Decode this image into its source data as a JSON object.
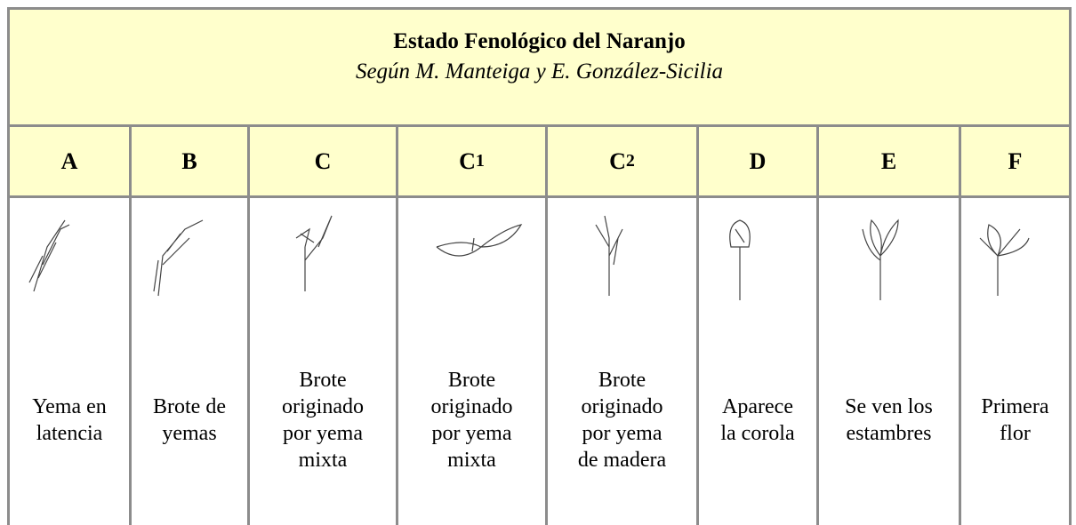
{
  "header": {
    "title": "Estado Fenológico del Naranjo",
    "subtitle": "Según M. Manteiga y E. González-Sicilia"
  },
  "columns": [
    {
      "letter": "A",
      "description": [
        "Yema en",
        "latencia"
      ]
    },
    {
      "letter": "B",
      "description": [
        "Brote de",
        "yemas"
      ]
    },
    {
      "letter": "C",
      "description": [
        "Brote",
        "originado",
        "por yema",
        "mixta"
      ]
    },
    {
      "letter": "C",
      "subscript": "1",
      "description": [
        "Brote",
        "originado",
        "por yema",
        "mixta"
      ]
    },
    {
      "letter": "C",
      "subscript": "2",
      "description": [
        "Brote",
        "originado",
        "por yema",
        "de madera"
      ]
    },
    {
      "letter": "D",
      "description": [
        "Aparece",
        "la corola"
      ]
    },
    {
      "letter": "E",
      "description": [
        "Se ven los",
        "estambres"
      ]
    },
    {
      "letter": "F",
      "description": [
        "Primera",
        "flor"
      ]
    }
  ]
}
